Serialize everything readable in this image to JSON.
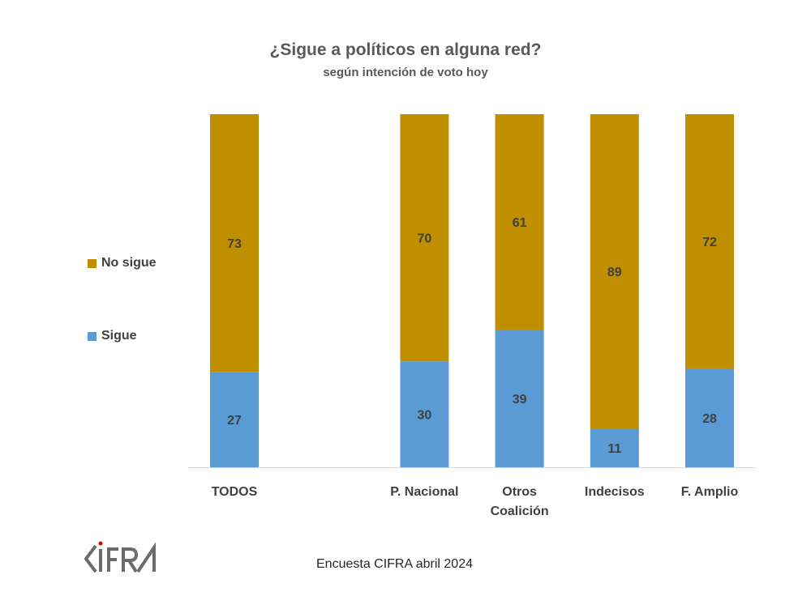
{
  "chart_data": {
    "type": "bar",
    "stacked": true,
    "title": "¿Sigue a políticos en alguna red?",
    "subtitle": "según intención de voto hoy",
    "categories": [
      "TODOS",
      "P. Nacional",
      "Otros Coalición",
      "Indecisos",
      "F. Amplio"
    ],
    "category_lines": [
      [
        "TODOS"
      ],
      [
        "P. Nacional"
      ],
      [
        "Otros",
        "Coalición"
      ],
      [
        "Indecisos"
      ],
      [
        "F. Amplio"
      ]
    ],
    "series": [
      {
        "name": "Sigue",
        "color": "#5B9BD5",
        "values": [
          27,
          30,
          39,
          11,
          28
        ]
      },
      {
        "name": "No sigue",
        "color": "#BF8F00",
        "values": [
          73,
          70,
          61,
          89,
          72
        ]
      }
    ],
    "ylim": [
      0,
      100
    ],
    "grid": false,
    "legend_position": "left"
  },
  "legend": {
    "no_sigue": "No sigue",
    "sigue": "Sigue"
  },
  "footer": "Encuesta CIFRA abril 2024",
  "logo_text": "CIFRA"
}
